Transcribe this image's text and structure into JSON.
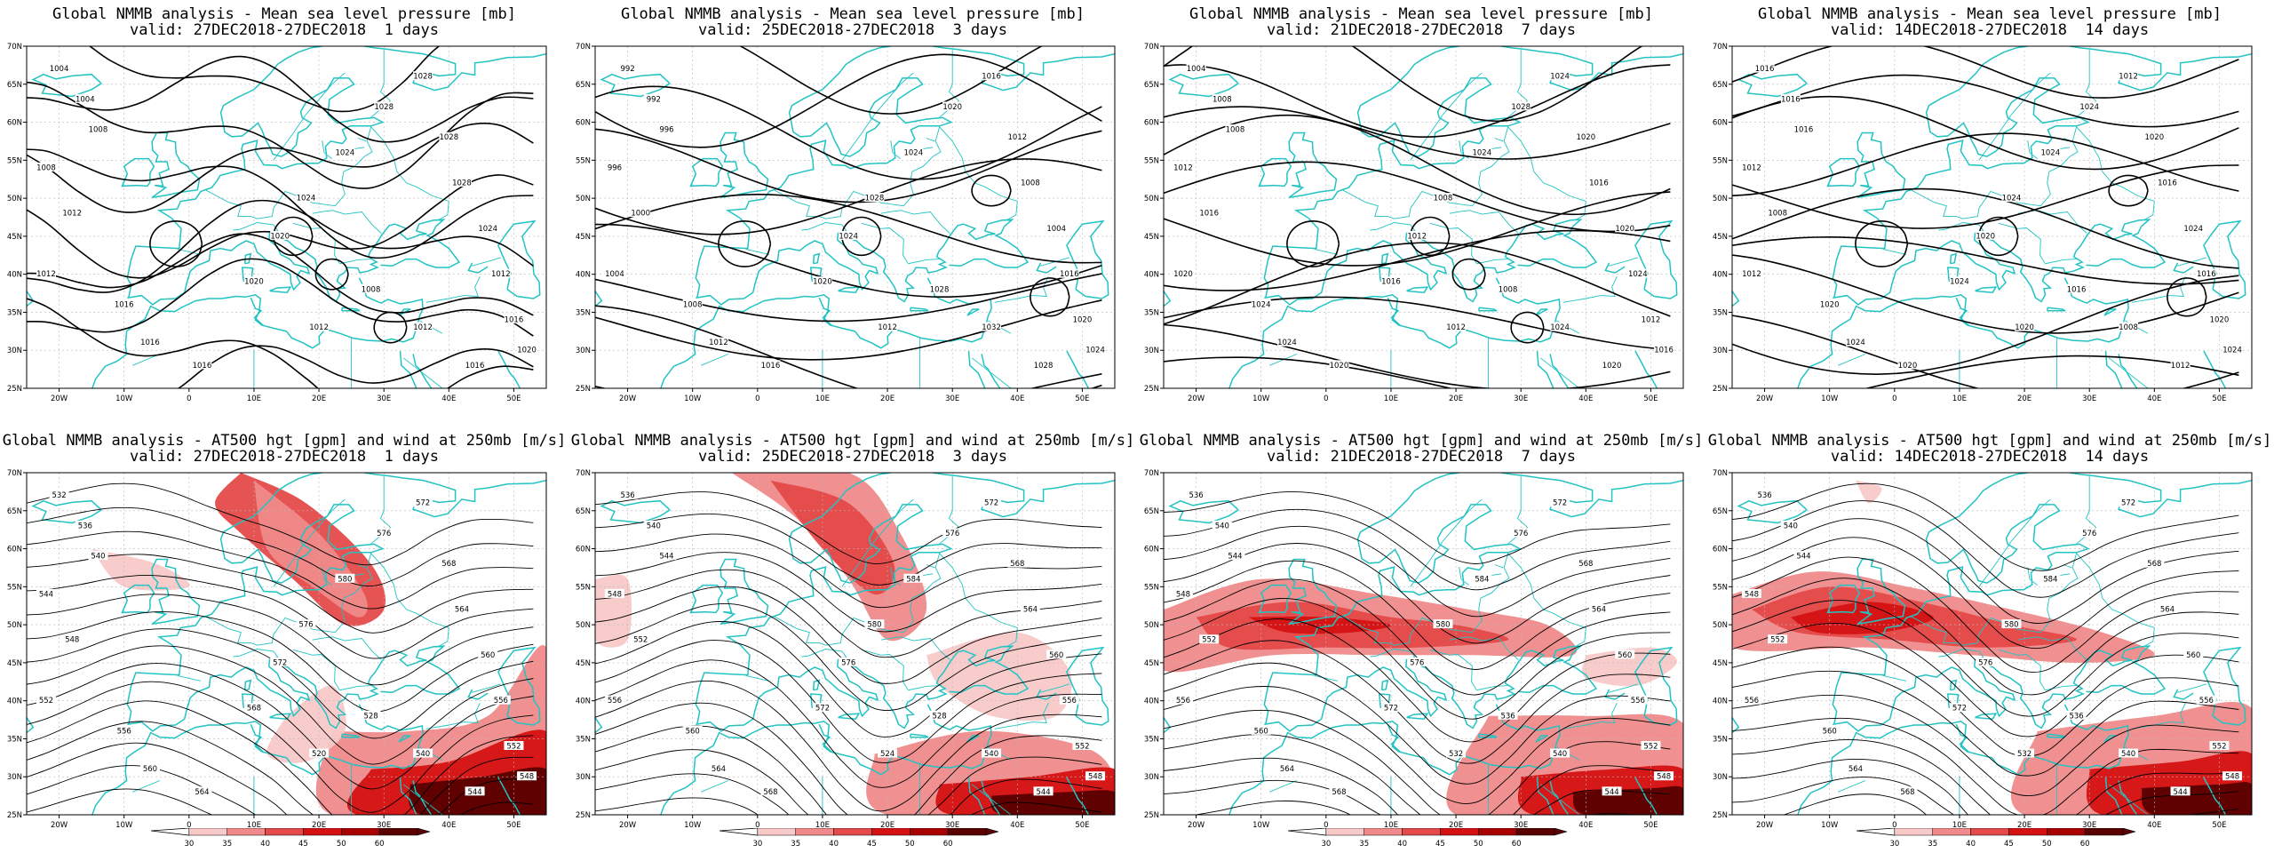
{
  "colors": {
    "coast": "#22c3c3",
    "contour": "#000000",
    "grid": "#b9b9b9",
    "wind": [
      "#f9c9c9",
      "#ef8a8a",
      "#e44a4a",
      "#d41212",
      "#a70000",
      "#5a0000"
    ]
  },
  "colorbar": {
    "labels": [
      "30",
      "35",
      "40",
      "45",
      "50",
      "60"
    ],
    "colors": [
      "#f9c9c9",
      "#ef8a8a",
      "#e44a4a",
      "#d41212",
      "#a70000",
      "#5a0000"
    ]
  },
  "axes": {
    "lon_ticks": [
      "20W",
      "10W",
      "0",
      "10E",
      "20E",
      "30E",
      "40E",
      "50E"
    ],
    "lat_ticks": [
      "70N",
      "65N",
      "60N",
      "55N",
      "50N",
      "45N",
      "40N",
      "35N",
      "30N",
      "25N"
    ]
  },
  "panels": [
    {
      "title": "Global NMMB analysis - Mean sea level pressure [mb]",
      "subtitle": "valid: 27DEC2018-27DEC2018  1 days",
      "kind": "mslp",
      "contour_labels": [
        "1004",
        "1004",
        "1008",
        "1008",
        "1012",
        "1012",
        "1016",
        "1016",
        "1016",
        "1020",
        "1020",
        "1024",
        "1024",
        "1028",
        "1028",
        "1028",
        "1028",
        "1024",
        "1012",
        "1016",
        "1020",
        "1016",
        "1012",
        "1008",
        "1012"
      ]
    },
    {
      "title": "Global NMMB analysis - Mean sea level pressure [mb]",
      "subtitle": "valid: 25DEC2018-27DEC2018  3 days",
      "kind": "mslp",
      "contour_labels": [
        "992",
        "992",
        "996",
        "996",
        "1000",
        "1004",
        "1008",
        "1012",
        "1016",
        "1020",
        "1024",
        "1028",
        "1024",
        "1020",
        "1016",
        "1012",
        "1008",
        "1004",
        "1016",
        "1020",
        "1024",
        "1028",
        "1032",
        "1028",
        "1012"
      ]
    },
    {
      "title": "Global NMMB analysis - Mean sea level pressure [mb]",
      "subtitle": "valid: 21DEC2018-27DEC2018  7 days",
      "kind": "mslp",
      "contour_labels": [
        "1004",
        "1008",
        "1008",
        "1012",
        "1016",
        "1020",
        "1024",
        "1024",
        "1020",
        "1016",
        "1012",
        "1008",
        "1024",
        "1028",
        "1024",
        "1020",
        "1016",
        "1020",
        "1024",
        "1012",
        "1016",
        "1020",
        "1024",
        "1008",
        "1012"
      ]
    },
    {
      "title": "Global NMMB analysis - Mean sea level pressure [mb]",
      "subtitle": "valid: 14DEC2018-27DEC2018  14 days",
      "kind": "mslp",
      "contour_labels": [
        "1016",
        "1016",
        "1016",
        "1012",
        "1008",
        "1012",
        "1020",
        "1024",
        "1020",
        "1024",
        "1020",
        "1024",
        "1024",
        "1024",
        "1012",
        "1020",
        "1016",
        "1024",
        "1016",
        "1020",
        "1024",
        "1012",
        "1008",
        "1016",
        "1020"
      ]
    },
    {
      "title": "Global NMMB analysis - AT500 hgt [gpm] and wind at 250mb [m/s]",
      "subtitle": "valid: 27DEC2018-27DEC2018  1 days",
      "kind": "z500",
      "contour_labels": [
        "532",
        "536",
        "540",
        "544",
        "548",
        "552",
        "556",
        "560",
        "564",
        "568",
        "572",
        "576",
        "580",
        "576",
        "572",
        "568",
        "564",
        "560",
        "556",
        "552",
        "548",
        "544",
        "540",
        "528",
        "520"
      ]
    },
    {
      "title": "Global NMMB analysis - AT500 hgt [gpm] and wind at 250mb [m/s]",
      "subtitle": "valid: 25DEC2018-27DEC2018  3 days",
      "kind": "z500",
      "contour_labels": [
        "536",
        "540",
        "544",
        "548",
        "552",
        "556",
        "560",
        "564",
        "568",
        "572",
        "576",
        "580",
        "584",
        "576",
        "572",
        "568",
        "564",
        "560",
        "556",
        "552",
        "548",
        "544",
        "540",
        "528",
        "524"
      ]
    },
    {
      "title": "Global NMMB analysis - AT500 hgt [gpm] and wind at 250mb [m/s]",
      "subtitle": "valid: 21DEC2018-27DEC2018  7 days",
      "kind": "z500",
      "contour_labels": [
        "536",
        "540",
        "544",
        "548",
        "552",
        "556",
        "560",
        "564",
        "568",
        "572",
        "576",
        "580",
        "584",
        "576",
        "572",
        "568",
        "564",
        "560",
        "556",
        "552",
        "548",
        "544",
        "540",
        "536",
        "532"
      ]
    },
    {
      "title": "Global NMMB analysis - AT500 hgt [gpm] and wind at 250mb [m/s]",
      "subtitle": "valid: 14DEC2018-27DEC2018  14 days",
      "kind": "z500",
      "contour_labels": [
        "536",
        "540",
        "544",
        "548",
        "552",
        "556",
        "560",
        "564",
        "568",
        "572",
        "576",
        "580",
        "584",
        "576",
        "572",
        "568",
        "564",
        "560",
        "556",
        "552",
        "548",
        "544",
        "540",
        "536",
        "532"
      ]
    }
  ],
  "chart_data": [
    {
      "type": "heatmap",
      "title": "Global NMMB analysis - Mean sea level pressure [mb]",
      "subtitle": "valid: 27DEC2018-27DEC2018  1 days",
      "variable": "mean sea level pressure",
      "units": "mb",
      "contour_interval": 4,
      "contour_levels": [
        1004,
        1008,
        1012,
        1016,
        1020,
        1024,
        1028
      ],
      "x_range": [
        "25W",
        "55E"
      ],
      "y_range": [
        "25N",
        "70N"
      ],
      "grid": true
    },
    {
      "type": "heatmap",
      "title": "Global NMMB analysis - Mean sea level pressure [mb]",
      "subtitle": "valid: 25DEC2018-27DEC2018  3 days",
      "variable": "mean sea level pressure",
      "units": "mb",
      "contour_interval": 4,
      "contour_levels": [
        992,
        996,
        1000,
        1004,
        1008,
        1012,
        1016,
        1020,
        1024,
        1028,
        1032
      ],
      "x_range": [
        "25W",
        "55E"
      ],
      "y_range": [
        "25N",
        "70N"
      ],
      "grid": true
    },
    {
      "type": "heatmap",
      "title": "Global NMMB analysis - Mean sea level pressure [mb]",
      "subtitle": "valid: 21DEC2018-27DEC2018  7 days",
      "variable": "mean sea level pressure",
      "units": "mb",
      "contour_interval": 4,
      "contour_levels": [
        1004,
        1008,
        1012,
        1016,
        1020,
        1024,
        1028
      ],
      "x_range": [
        "25W",
        "55E"
      ],
      "y_range": [
        "25N",
        "70N"
      ],
      "grid": true
    },
    {
      "type": "heatmap",
      "title": "Global NMMB analysis - Mean sea level pressure [mb]",
      "subtitle": "valid: 14DEC2018-27DEC2018  14 days",
      "variable": "mean sea level pressure",
      "units": "mb",
      "contour_interval": 4,
      "contour_levels": [
        1008,
        1012,
        1016,
        1020,
        1024
      ],
      "x_range": [
        "25W",
        "55E"
      ],
      "y_range": [
        "25N",
        "70N"
      ],
      "grid": true
    },
    {
      "type": "heatmap",
      "title": "Global NMMB analysis - AT500 hgt [gpm] and wind at 250mb [m/s]",
      "subtitle": "valid: 27DEC2018-27DEC2018  1 days",
      "variable": "500 hPa geopotential height and 250 hPa wind",
      "units": "gpm, m/s",
      "contour_interval": 4,
      "contour_levels": [
        520,
        528,
        532,
        536,
        540,
        544,
        548,
        552,
        556,
        560,
        564,
        568,
        572,
        576,
        580
      ],
      "wind_shading_levels": [
        30,
        35,
        40,
        45,
        50,
        60
      ],
      "x_range": [
        "25W",
        "55E"
      ],
      "y_range": [
        "25N",
        "70N"
      ],
      "grid": true
    },
    {
      "type": "heatmap",
      "title": "Global NMMB analysis - AT500 hgt [gpm] and wind at 250mb [m/s]",
      "subtitle": "valid: 25DEC2018-27DEC2018  3 days",
      "variable": "500 hPa geopotential height and 250 hPa wind",
      "units": "gpm, m/s",
      "contour_interval": 4,
      "contour_levels": [
        524,
        528,
        536,
        540,
        544,
        548,
        552,
        556,
        560,
        564,
        568,
        572,
        576,
        580,
        584
      ],
      "wind_shading_levels": [
        30,
        35,
        40,
        45,
        50,
        60
      ],
      "x_range": [
        "25W",
        "55E"
      ],
      "y_range": [
        "25N",
        "70N"
      ],
      "grid": true
    },
    {
      "type": "heatmap",
      "title": "Global NMMB analysis - AT500 hgt [gpm] and wind at 250mb [m/s]",
      "subtitle": "valid: 21DEC2018-27DEC2018  7 days",
      "variable": "500 hPa geopotential height and 250 hPa wind",
      "units": "gpm, m/s",
      "contour_interval": 4,
      "contour_levels": [
        532,
        536,
        540,
        544,
        548,
        552,
        556,
        560,
        564,
        568,
        572,
        576,
        580,
        584
      ],
      "wind_shading_levels": [
        30,
        35,
        40,
        45,
        50,
        60
      ],
      "x_range": [
        "25W",
        "55E"
      ],
      "y_range": [
        "25N",
        "70N"
      ],
      "grid": true
    },
    {
      "type": "heatmap",
      "title": "Global NMMB analysis - AT500 hgt [gpm] and wind at 250mb [m/s]",
      "subtitle": "valid: 14DEC2018-27DEC2018  14 days",
      "variable": "500 hPa geopotential height and 250 hPa wind",
      "units": "gpm, m/s",
      "contour_interval": 4,
      "contour_levels": [
        532,
        536,
        540,
        544,
        548,
        552,
        556,
        560,
        564,
        568,
        572,
        576,
        580,
        584
      ],
      "wind_shading_levels": [
        30,
        35,
        40,
        45,
        50,
        60
      ],
      "x_range": [
        "25W",
        "55E"
      ],
      "y_range": [
        "25N",
        "70N"
      ],
      "grid": true
    }
  ]
}
